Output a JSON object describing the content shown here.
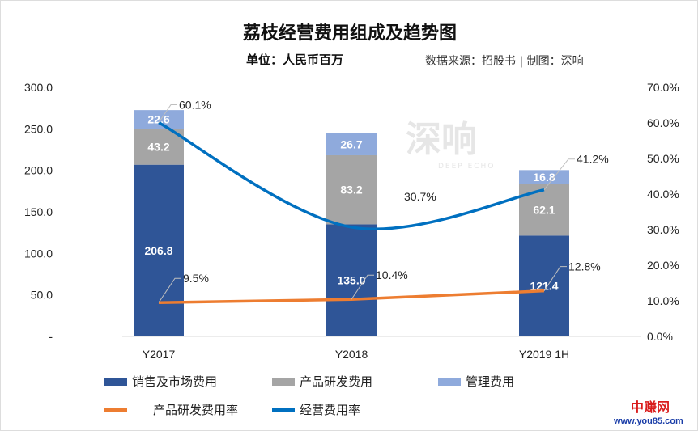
{
  "chart_data": {
    "type": "bar",
    "stacked": true,
    "title": "荔枝经营费用组成及趋势图",
    "subtitle": "单位：人民币百万",
    "source": "数据来源：招股书 | 制图：深响",
    "categories": [
      "Y2017",
      "Y2018",
      "Y2019 1H"
    ],
    "series": [
      {
        "name": "销售及市场费用",
        "type": "bar",
        "axis": "left",
        "color": "#2f5597",
        "values": [
          206.8,
          135.0,
          121.4
        ],
        "labels": [
          "206.8",
          "135.0",
          "121.4"
        ]
      },
      {
        "name": "产品研发费用",
        "type": "bar",
        "axis": "left",
        "color": "#a5a5a5",
        "values": [
          43.2,
          83.2,
          62.1
        ],
        "labels": [
          "43.2",
          "83.2",
          "62.1"
        ]
      },
      {
        "name": "管理费用",
        "type": "bar",
        "axis": "left",
        "color": "#8faadc",
        "values": [
          22.6,
          26.7,
          16.8
        ],
        "labels": [
          "22.6",
          "26.7",
          "16.8"
        ]
      },
      {
        "name": "产品研发费用率",
        "type": "line",
        "axis": "right",
        "color": "#ed7d31",
        "values": [
          9.5,
          10.4,
          12.8
        ],
        "labels": [
          "9.5%",
          "10.4%",
          "12.8%"
        ]
      },
      {
        "name": "经营费用率",
        "type": "line",
        "axis": "right",
        "smooth": true,
        "color": "#0070c0",
        "values": [
          60.1,
          30.7,
          41.2
        ],
        "labels": [
          "60.1%",
          "30.7%",
          "41.2%"
        ]
      }
    ],
    "yleft": {
      "range": [
        0,
        300
      ],
      "ticks": [
        "-",
        "50.0",
        "100.0",
        "150.0",
        "200.0",
        "250.0",
        "300.0"
      ]
    },
    "yright": {
      "range": [
        0,
        70
      ],
      "ticks": [
        "0.0%",
        "10.0%",
        "20.0%",
        "30.0%",
        "40.0%",
        "50.0%",
        "60.0%",
        "70.0%"
      ]
    },
    "grid": false,
    "legend": "bottom"
  },
  "watermarks": {
    "logo": "深响",
    "logo_sub": "DEEP ECHO",
    "site_name": "中赚网",
    "site_url": "www.you85.com"
  }
}
